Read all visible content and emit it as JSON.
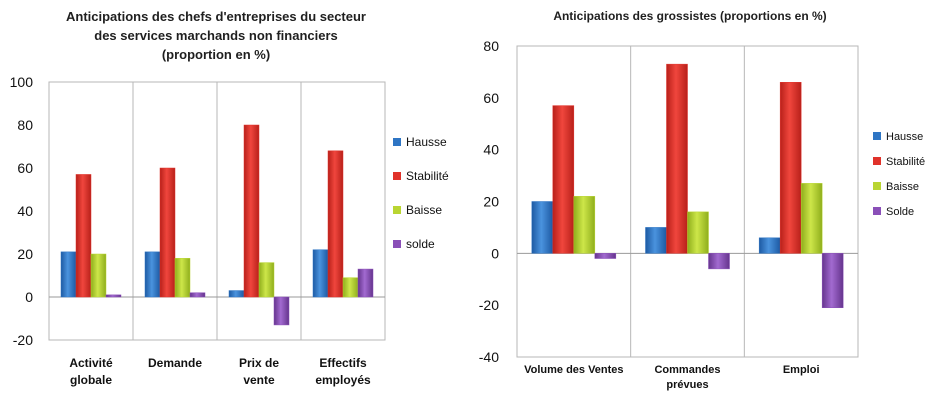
{
  "colors": {
    "hausse": "#2e75c4",
    "stabilite": "#e0322a",
    "baisse": "#b9d532",
    "solde": "#8a4fb8"
  },
  "chart_data": [
    {
      "type": "bar",
      "title_lines": [
        "Anticipations des chefs d'entreprises du secteur",
        "des services marchands non financiers",
        "(proportion en %)"
      ],
      "categories": [
        [
          "Activité",
          "globale"
        ],
        [
          "Demande"
        ],
        [
          "Prix de",
          "vente"
        ],
        [
          "Effectifs",
          "employés"
        ]
      ],
      "series": [
        {
          "name": "Hausse",
          "key": "hausse",
          "values": [
            21,
            21,
            3,
            22
          ]
        },
        {
          "name": "Stabilité",
          "key": "stabilite",
          "values": [
            57,
            60,
            80,
            68
          ]
        },
        {
          "name": "Baisse",
          "key": "baisse",
          "values": [
            20,
            18,
            16,
            9
          ]
        },
        {
          "name": "solde",
          "key": "solde",
          "values": [
            1,
            2,
            -13,
            13
          ]
        }
      ],
      "ylim": [
        -20,
        100
      ],
      "yticks": [
        -20,
        0,
        20,
        40,
        60,
        80,
        100
      ],
      "grid": "vertical category separators",
      "legend": "right"
    },
    {
      "type": "bar",
      "title_lines": [
        "Anticipations des grossistes (proportions en %)"
      ],
      "categories": [
        [
          "Volume des Ventes"
        ],
        [
          "Commandes",
          "prévues"
        ],
        [
          "Emploi"
        ]
      ],
      "series": [
        {
          "name": "Hausse",
          "key": "hausse",
          "values": [
            20,
            10,
            6
          ]
        },
        {
          "name": "Stabilité",
          "key": "stabilite",
          "values": [
            57,
            73,
            66
          ]
        },
        {
          "name": "Baisse",
          "key": "baisse",
          "values": [
            22,
            16,
            27
          ]
        },
        {
          "name": "Solde",
          "key": "solde",
          "values": [
            -2,
            -6,
            -21
          ]
        }
      ],
      "ylim": [
        -40,
        80
      ],
      "yticks": [
        -40,
        -20,
        0,
        20,
        40,
        60,
        80
      ],
      "grid": "vertical category separators",
      "legend": "right"
    }
  ]
}
